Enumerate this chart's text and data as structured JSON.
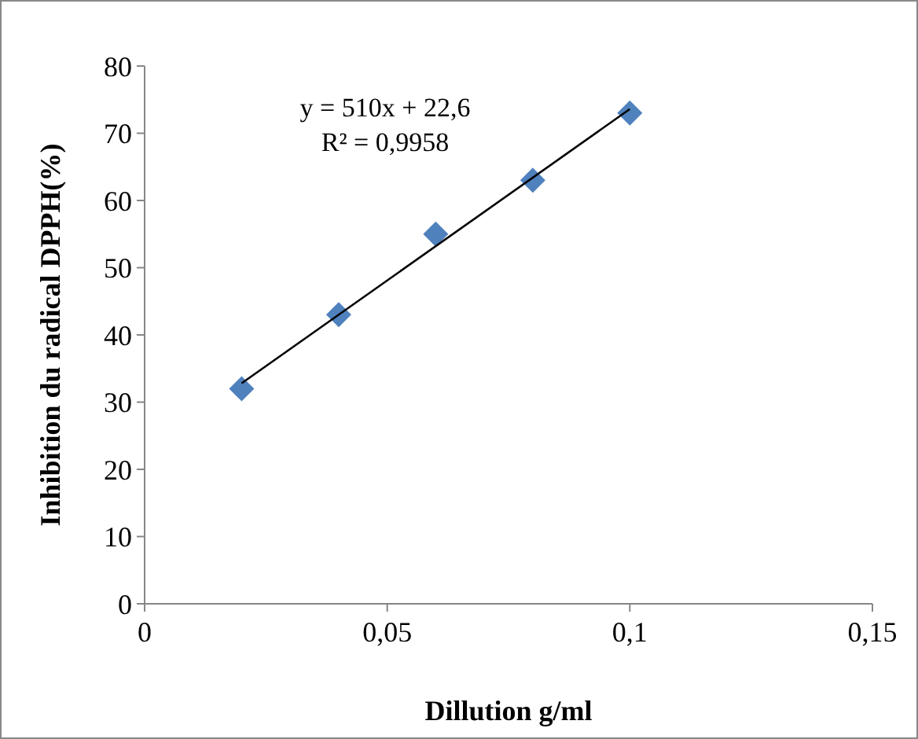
{
  "chart_data": {
    "type": "scatter",
    "xlabel": "Dillution g/ml",
    "ylabel": "Inhibition du radical DPPH(%)",
    "x": [
      0.02,
      0.04,
      0.06,
      0.08,
      0.1
    ],
    "series": [
      {
        "color": "#4f81bd",
        "marker": "diamond",
        "values": [
          32,
          43,
          55,
          63,
          73
        ]
      },
      {
        "type": "line",
        "color": "#000000",
        "marker": "none",
        "x": [
          0.02,
          0.1
        ],
        "values": [
          32.8,
          73.6
        ]
      }
    ],
    "annotations": [
      "y = 510x + 22,6",
      "R² = 0,9958"
    ],
    "xlim": [
      0,
      0.15
    ],
    "ylim": [
      0,
      80
    ],
    "xticks": [
      0,
      {
        "value": 0.05,
        "label": "0,05"
      },
      {
        "value": 0.1,
        "label": "0,1"
      },
      {
        "value": 0.15,
        "label": "0,15"
      }
    ],
    "yticks": [
      0,
      10,
      20,
      30,
      40,
      50,
      60,
      70,
      80
    ],
    "grid": false
  }
}
